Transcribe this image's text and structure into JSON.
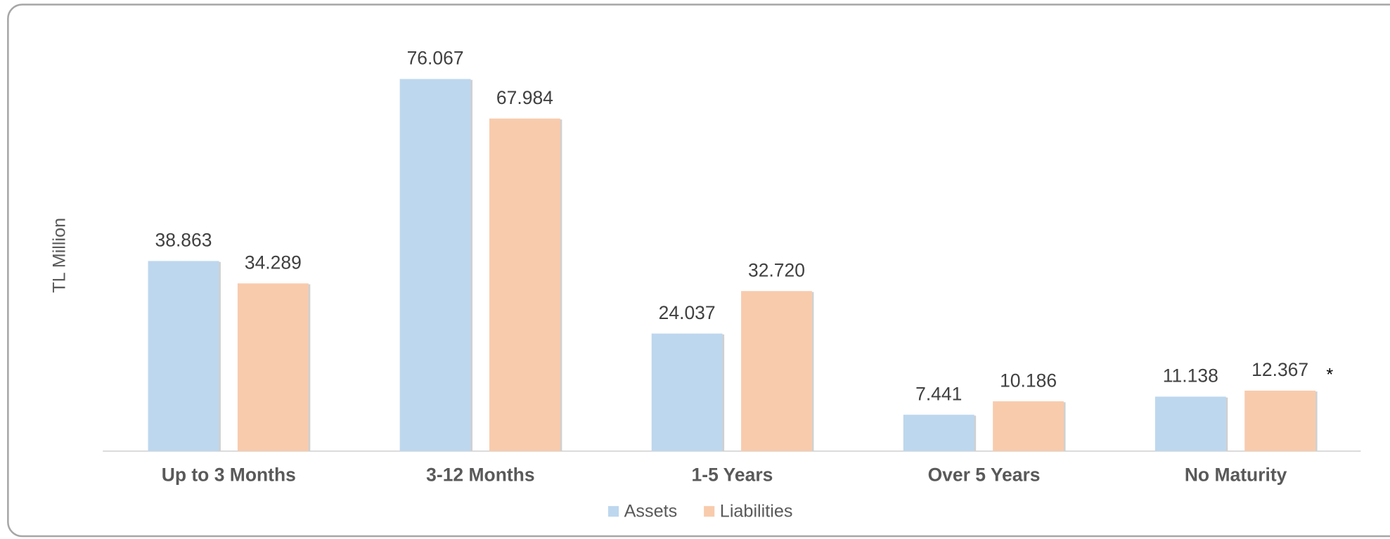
{
  "chart_data": {
    "type": "bar",
    "y_label": "TL Million",
    "categories": [
      "Up to 3 Months",
      "3-12 Months",
      "1-5 Years",
      "Over 5 Years",
      "No Maturity"
    ],
    "series": [
      {
        "name": "Assets",
        "color": "#bdd7ee",
        "values": [
          38863,
          76067,
          24037,
          7441,
          11138
        ],
        "value_labels": [
          "38.863",
          "76.067",
          "24.037",
          "7.441",
          "11.138"
        ]
      },
      {
        "name": "Liabilities",
        "color": "#f8cbad",
        "values": [
          34289,
          67984,
          32720,
          10186,
          12367
        ],
        "value_labels": [
          "34.289",
          "67.984",
          "32.720",
          "10.186",
          "12.367"
        ]
      }
    ],
    "annotation": "*"
  }
}
